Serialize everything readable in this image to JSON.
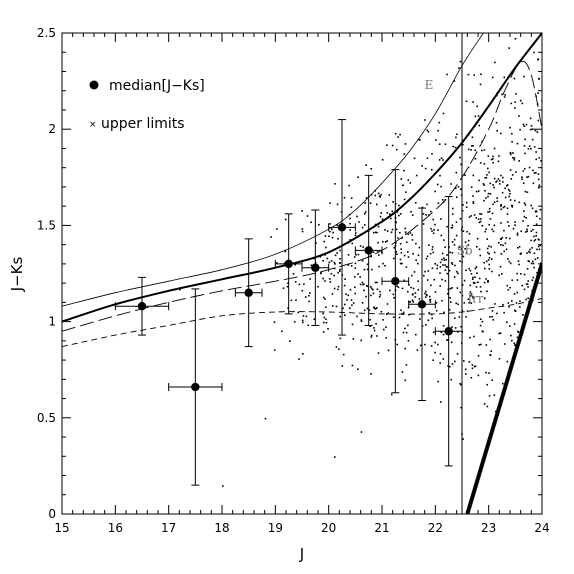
{
  "chart_data": {
    "type": "scatter",
    "title": "",
    "xlabel": "J",
    "ylabel": "J−Ks",
    "xlim": [
      15,
      24
    ],
    "ylim": [
      0,
      2.5
    ],
    "xticks": [
      15,
      16,
      17,
      18,
      19,
      20,
      21,
      22,
      23,
      24
    ],
    "yticks": [
      0,
      0.5,
      1,
      1.5,
      2,
      2.5
    ],
    "ytick_labels": [
      "0",
      "0.5",
      "1",
      "1.5",
      "2",
      "2.5"
    ],
    "grid": false,
    "legend_position": "top-left",
    "legend": [
      {
        "marker": "filled-circle",
        "label": "median[J−Ks]"
      },
      {
        "marker": "cross",
        "label": "upper limits"
      }
    ],
    "median_points": [
      {
        "x": 16.5,
        "y": 1.08,
        "xerr": 0.5,
        "ylo": 0.93,
        "yhi": 1.23
      },
      {
        "x": 17.5,
        "y": 0.66,
        "xerr": 0.5,
        "ylo": 0.15,
        "yhi": 1.17
      },
      {
        "x": 18.5,
        "y": 1.15,
        "xerr": 0.25,
        "ylo": 0.87,
        "yhi": 1.43
      },
      {
        "x": 19.25,
        "y": 1.3,
        "xerr": 0.25,
        "ylo": 1.04,
        "yhi": 1.56
      },
      {
        "x": 19.75,
        "y": 1.28,
        "xerr": 0.25,
        "ylo": 0.98,
        "yhi": 1.58
      },
      {
        "x": 20.25,
        "y": 1.49,
        "xerr": 0.25,
        "ylo": 0.93,
        "yhi": 2.05
      },
      {
        "x": 20.75,
        "y": 1.37,
        "xerr": 0.25,
        "ylo": 0.98,
        "yhi": 1.76
      },
      {
        "x": 21.25,
        "y": 1.21,
        "xerr": 0.25,
        "ylo": 0.63,
        "yhi": 1.79
      },
      {
        "x": 21.75,
        "y": 1.09,
        "xerr": 0.25,
        "ylo": 0.59,
        "yhi": 1.59
      },
      {
        "x": 22.25,
        "y": 0.95,
        "xerr": 0.25,
        "ylo": 0.25,
        "yhi": 1.65
      }
    ],
    "vertical_line": {
      "x": 22.5,
      "ymin": 0,
      "ymax": 2.5
    },
    "upper_limit_line": {
      "x": [
        22.6,
        24.0
      ],
      "y": [
        0.0,
        1.3
      ]
    },
    "curves": [
      {
        "label": "E",
        "style": "thin-solid",
        "x": [
          15,
          16,
          17,
          18,
          19,
          20,
          20.5,
          21,
          21.5,
          22,
          22.5,
          22.9
        ],
        "y": [
          1.08,
          1.15,
          1.21,
          1.27,
          1.35,
          1.48,
          1.58,
          1.72,
          1.88,
          2.08,
          2.33,
          2.5
        ]
      },
      {
        "label": "",
        "style": "thick-solid",
        "x": [
          15,
          16,
          17,
          18,
          19,
          20,
          21,
          21.5,
          22,
          22.5,
          23,
          23.5,
          24
        ],
        "y": [
          1.0,
          1.09,
          1.16,
          1.22,
          1.28,
          1.36,
          1.52,
          1.63,
          1.77,
          1.93,
          2.12,
          2.32,
          2.5
        ]
      },
      {
        "label": "Sb",
        "style": "long-dash",
        "x": [
          15,
          16,
          17,
          18,
          19,
          20,
          21,
          22,
          22.5,
          23,
          23.3,
          23.6,
          23.8,
          24
        ],
        "y": [
          0.95,
          1.03,
          1.1,
          1.16,
          1.21,
          1.27,
          1.37,
          1.58,
          1.75,
          2.0,
          2.2,
          2.35,
          2.28,
          2.0
        ]
      },
      {
        "label": "Irr",
        "style": "short-dash",
        "x": [
          15,
          16,
          17,
          18,
          19,
          20,
          21,
          22,
          22.5,
          23,
          23.5,
          24
        ],
        "y": [
          0.87,
          0.93,
          0.98,
          1.03,
          1.05,
          1.05,
          1.04,
          1.04,
          1.05,
          1.07,
          1.09,
          1.12
        ]
      }
    ],
    "scatter_description_counts": {
      "dots": 1100,
      "upper_limits": 300
    }
  }
}
